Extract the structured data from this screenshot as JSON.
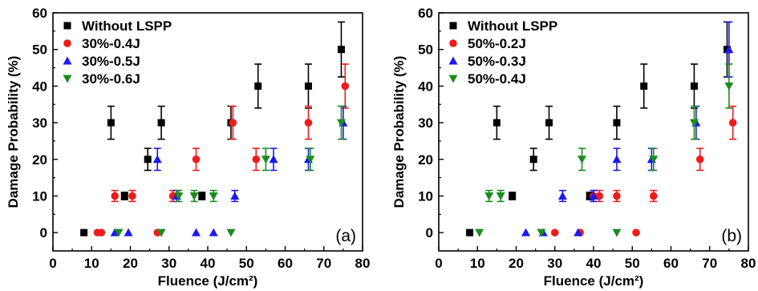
{
  "colors": {
    "black": "#000000",
    "red": "#ee1c1c",
    "blue": "#1a1aee",
    "green": "#1c8c1c"
  },
  "chart_data": [
    {
      "type": "scatter",
      "panel_label": "(a)",
      "xlabel": "Fluence (J/cm²)",
      "ylabel": "Damage Probability (%)",
      "xlim": [
        0,
        80
      ],
      "ylim": [
        -5,
        60
      ],
      "xticks": [
        0,
        10,
        20,
        30,
        40,
        50,
        60,
        70,
        80
      ],
      "yticks": [
        0,
        10,
        20,
        30,
        40,
        50,
        60
      ],
      "legend_position": "top-left",
      "series": [
        {
          "name": "Without LSPP",
          "marker": "square",
          "color": "#000000",
          "points": [
            {
              "x": 8,
              "y": 0,
              "err": 0
            },
            {
              "x": 15,
              "y": 30,
              "err": 4.5
            },
            {
              "x": 18.5,
              "y": 10,
              "err": 1
            },
            {
              "x": 24.5,
              "y": 20,
              "err": 3
            },
            {
              "x": 28,
              "y": 30,
              "err": 4.5
            },
            {
              "x": 38.5,
              "y": 10,
              "err": 1
            },
            {
              "x": 46,
              "y": 30,
              "err": 4.5
            },
            {
              "x": 53,
              "y": 40,
              "err": 6
            },
            {
              "x": 66,
              "y": 40,
              "err": 6
            },
            {
              "x": 74.5,
              "y": 50,
              "err": 7.5
            }
          ]
        },
        {
          "name": "30%-0.4J",
          "marker": "circle",
          "color": "#ee1c1c",
          "points": [
            {
              "x": 11.5,
              "y": 0,
              "err": 0
            },
            {
              "x": 12.5,
              "y": 0,
              "err": 0
            },
            {
              "x": 16,
              "y": 10,
              "err": 1.5
            },
            {
              "x": 20.5,
              "y": 10,
              "err": 1.5
            },
            {
              "x": 27,
              "y": 0,
              "err": 0
            },
            {
              "x": 31,
              "y": 10,
              "err": 1.5
            },
            {
              "x": 37,
              "y": 20,
              "err": 3
            },
            {
              "x": 46.5,
              "y": 30,
              "err": 4.5
            },
            {
              "x": 52.5,
              "y": 20,
              "err": 3
            },
            {
              "x": 66,
              "y": 30,
              "err": 4.5
            },
            {
              "x": 75.5,
              "y": 40,
              "err": 6
            }
          ]
        },
        {
          "name": "30%-0.5J",
          "marker": "triangle-up",
          "color": "#1a1aee",
          "points": [
            {
              "x": 16,
              "y": 0,
              "err": 0
            },
            {
              "x": 19.5,
              "y": 0,
              "err": 0
            },
            {
              "x": 27,
              "y": 20,
              "err": 3
            },
            {
              "x": 32,
              "y": 10,
              "err": 1.5
            },
            {
              "x": 37,
              "y": 0,
              "err": 0
            },
            {
              "x": 41.5,
              "y": 0,
              "err": 0
            },
            {
              "x": 47,
              "y": 10,
              "err": 1.5
            },
            {
              "x": 57,
              "y": 20,
              "err": 3
            },
            {
              "x": 66,
              "y": 20,
              "err": 3
            },
            {
              "x": 75,
              "y": 30,
              "err": 4.5
            }
          ]
        },
        {
          "name": "30%-0.6J",
          "marker": "triangle-down",
          "color": "#1c8c1c",
          "points": [
            {
              "x": 17,
              "y": 0,
              "err": 0
            },
            {
              "x": 28,
              "y": 0,
              "err": 0
            },
            {
              "x": 32.5,
              "y": 10,
              "err": 1.5
            },
            {
              "x": 36.5,
              "y": 10,
              "err": 1.5
            },
            {
              "x": 41.5,
              "y": 10,
              "err": 1.5
            },
            {
              "x": 46,
              "y": 0,
              "err": 0
            },
            {
              "x": 55,
              "y": 20,
              "err": 3
            },
            {
              "x": 66.5,
              "y": 20,
              "err": 3
            },
            {
              "x": 74.5,
              "y": 30,
              "err": 4.5
            }
          ]
        }
      ]
    },
    {
      "type": "scatter",
      "panel_label": "(b)",
      "xlabel": "Fluence (J/cm²)",
      "ylabel": "Damage Probability (%)",
      "xlim": [
        0,
        80
      ],
      "ylim": [
        -5,
        60
      ],
      "xticks": [
        0,
        10,
        20,
        30,
        40,
        50,
        60,
        70,
        80
      ],
      "yticks": [
        0,
        10,
        20,
        30,
        40,
        50,
        60
      ],
      "legend_position": "top-left",
      "series": [
        {
          "name": "Without LSPP",
          "marker": "square",
          "color": "#000000",
          "points": [
            {
              "x": 8,
              "y": 0,
              "err": 0
            },
            {
              "x": 15,
              "y": 30,
              "err": 4.5
            },
            {
              "x": 19,
              "y": 10,
              "err": 1
            },
            {
              "x": 24.5,
              "y": 20,
              "err": 3
            },
            {
              "x": 28.5,
              "y": 30,
              "err": 4.5
            },
            {
              "x": 39,
              "y": 10,
              "err": 1
            },
            {
              "x": 46,
              "y": 30,
              "err": 4.5
            },
            {
              "x": 53,
              "y": 40,
              "err": 6
            },
            {
              "x": 66,
              "y": 40,
              "err": 6
            },
            {
              "x": 74.5,
              "y": 50,
              "err": 7.5
            }
          ]
        },
        {
          "name": "50%-0.2J",
          "marker": "circle",
          "color": "#ee1c1c",
          "points": [
            {
              "x": 30,
              "y": 0,
              "err": 0
            },
            {
              "x": 36.5,
              "y": 0,
              "err": 0
            },
            {
              "x": 40,
              "y": 10,
              "err": 1.5
            },
            {
              "x": 41.5,
              "y": 10,
              "err": 1.5
            },
            {
              "x": 46,
              "y": 10,
              "err": 1.5
            },
            {
              "x": 51,
              "y": 0,
              "err": 0
            },
            {
              "x": 55.5,
              "y": 10,
              "err": 1.5
            },
            {
              "x": 67.5,
              "y": 20,
              "err": 3
            },
            {
              "x": 76,
              "y": 30,
              "err": 4.5
            }
          ]
        },
        {
          "name": "50%-0.3J",
          "marker": "triangle-up",
          "color": "#1a1aee",
          "points": [
            {
              "x": 22.5,
              "y": 0,
              "err": 0
            },
            {
              "x": 27,
              "y": 0,
              "err": 0
            },
            {
              "x": 32,
              "y": 10,
              "err": 1.5
            },
            {
              "x": 36,
              "y": 0,
              "err": 0
            },
            {
              "x": 40,
              "y": 10,
              "err": 1.5
            },
            {
              "x": 46,
              "y": 20,
              "err": 3
            },
            {
              "x": 55,
              "y": 20,
              "err": 3
            },
            {
              "x": 66.5,
              "y": 30,
              "err": 4.5
            },
            {
              "x": 75,
              "y": 50,
              "err": 7.5
            }
          ]
        },
        {
          "name": "50%-0.4J",
          "marker": "triangle-down",
          "color": "#1c8c1c",
          "points": [
            {
              "x": 10.5,
              "y": 0,
              "err": 0
            },
            {
              "x": 13,
              "y": 10,
              "err": 1.5
            },
            {
              "x": 16,
              "y": 10,
              "err": 1.5
            },
            {
              "x": 26.5,
              "y": 0,
              "err": 0
            },
            {
              "x": 37,
              "y": 20,
              "err": 3
            },
            {
              "x": 46,
              "y": 0,
              "err": 0
            },
            {
              "x": 55.5,
              "y": 20,
              "err": 3
            },
            {
              "x": 66,
              "y": 30,
              "err": 4.5
            },
            {
              "x": 75,
              "y": 40,
              "err": 6
            }
          ]
        }
      ]
    }
  ]
}
